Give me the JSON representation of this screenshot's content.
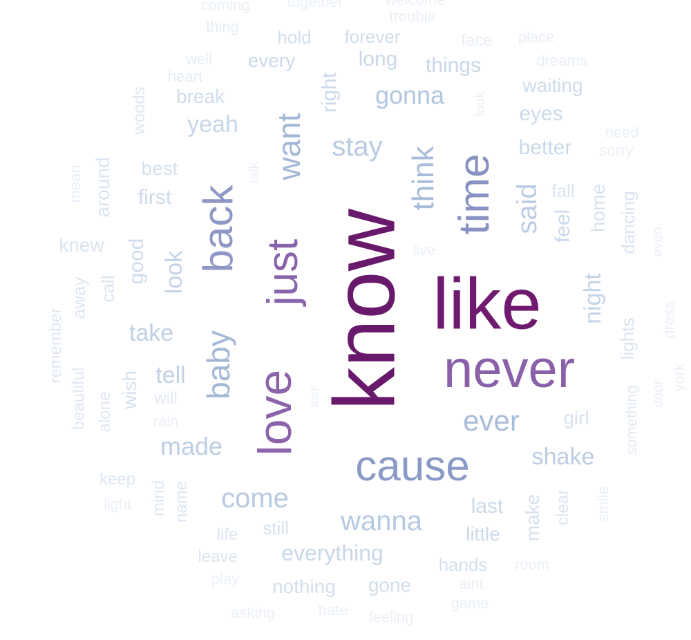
{
  "words": [
    {
      "text": "know",
      "color": "#69196b"
    },
    {
      "text": "like",
      "color": "#6f1a6e"
    },
    {
      "text": "never",
      "color": "#8960a9"
    },
    {
      "text": "love",
      "color": "#8c63aa"
    },
    {
      "text": "just",
      "color": "#8a64aa"
    },
    {
      "text": "cause",
      "color": "#8a9ac6"
    },
    {
      "text": "time",
      "color": "#8993c2"
    },
    {
      "text": "back",
      "color": "#8f97c5"
    },
    {
      "text": "baby",
      "color": "#a2b8d6"
    },
    {
      "text": "want",
      "color": "#a3b8d6"
    },
    {
      "text": "think",
      "color": "#a6bcd8"
    },
    {
      "text": "ever",
      "color": "#a7bcd8"
    },
    {
      "text": "wanna",
      "color": "#b5c9e1"
    },
    {
      "text": "come",
      "color": "#b7cae2"
    },
    {
      "text": "said",
      "color": "#bccde3"
    },
    {
      "text": "stay",
      "color": "#b9cbe2"
    },
    {
      "text": "gonna",
      "color": "#b2c6df"
    },
    {
      "text": "made",
      "color": "#bdcee4"
    },
    {
      "text": "shake",
      "color": "#bccde3"
    },
    {
      "text": "take",
      "color": "#bfd0e4"
    },
    {
      "text": "tell",
      "color": "#c1d2e5"
    },
    {
      "text": "night",
      "color": "#c4d4e7"
    },
    {
      "text": "look",
      "color": "#c3d3e6"
    },
    {
      "text": "yeah",
      "color": "#c6d6e8"
    },
    {
      "text": "everything",
      "color": "#c8d7e9"
    },
    {
      "text": "better",
      "color": "#c8d7e9"
    },
    {
      "text": "things",
      "color": "#c8d7e9"
    },
    {
      "text": "feel",
      "color": "#cbd9ea"
    },
    {
      "text": "long",
      "color": "#cad8e9"
    },
    {
      "text": "every",
      "color": "#cad8e9"
    },
    {
      "text": "right",
      "color": "#ccdaeb"
    },
    {
      "text": "eyes",
      "color": "#ccdaeb"
    },
    {
      "text": "last",
      "color": "#cbd9ea"
    },
    {
      "text": "little",
      "color": "#ccdaeb"
    },
    {
      "text": "good",
      "color": "#cfdcec"
    },
    {
      "text": "first",
      "color": "#cddaeb"
    },
    {
      "text": "break",
      "color": "#cfdcec"
    },
    {
      "text": "waiting",
      "color": "#cfdcec"
    },
    {
      "text": "forever",
      "color": "#d0ddec"
    },
    {
      "text": "hold",
      "color": "#d1deed"
    },
    {
      "text": "nothing",
      "color": "#d2deed"
    },
    {
      "text": "gone",
      "color": "#d3dfed"
    },
    {
      "text": "hands",
      "color": "#d3dfed"
    },
    {
      "text": "still",
      "color": "#d5e1ee"
    },
    {
      "text": "wish",
      "color": "#d5e1ee"
    },
    {
      "text": "girl",
      "color": "#d6e1ee"
    },
    {
      "text": "make",
      "color": "#d6e1ee"
    },
    {
      "text": "best",
      "color": "#d7e2ef"
    },
    {
      "text": "home",
      "color": "#d7e2ef"
    },
    {
      "text": "knew",
      "color": "#d9e4ef"
    },
    {
      "text": "call",
      "color": "#d9e4ef"
    },
    {
      "text": "around",
      "color": "#dae4f0"
    },
    {
      "text": "lights",
      "color": "#dae4f0"
    },
    {
      "text": "dancing",
      "color": "#dae4f0"
    },
    {
      "text": "fall",
      "color": "#dbe5f0"
    },
    {
      "text": "life",
      "color": "#dce6f1"
    },
    {
      "text": "clear",
      "color": "#dce6f1"
    },
    {
      "text": "away",
      "color": "#dde6f1"
    },
    {
      "text": "keep",
      "color": "#dde6f1"
    },
    {
      "text": "name",
      "color": "#dde6f1"
    },
    {
      "text": "leave",
      "color": "#dde6f1"
    },
    {
      "text": "woods",
      "color": "#dfe8f2"
    },
    {
      "text": "remember",
      "color": "#dfe8f2"
    },
    {
      "text": "beautiful",
      "color": "#e0e8f2"
    },
    {
      "text": "mind",
      "color": "#e0e8f2"
    },
    {
      "text": "alone",
      "color": "#e0e8f2"
    },
    {
      "text": "will",
      "color": "#e1e9f3"
    },
    {
      "text": "something",
      "color": "#e3eaf3"
    },
    {
      "text": "heart",
      "color": "#e5ecf4"
    },
    {
      "text": "well",
      "color": "#e7edf5"
    },
    {
      "text": "thing",
      "color": "#e7edf5"
    },
    {
      "text": "face",
      "color": "#e8eef5"
    },
    {
      "text": "place",
      "color": "#e8eef5"
    },
    {
      "text": "dreams",
      "color": "#e9eff6"
    },
    {
      "text": "trouble",
      "color": "#e9eff6"
    },
    {
      "text": "coming",
      "color": "#eaf0f6"
    },
    {
      "text": "together",
      "color": "#eaf0f6"
    },
    {
      "text": "welcome",
      "color": "#ebf0f7"
    },
    {
      "text": "look",
      "color": "#ebf0f7"
    },
    {
      "text": "need",
      "color": "#e9eff6"
    },
    {
      "text": "sorry",
      "color": "#ebf0f7"
    },
    {
      "text": "talk",
      "color": "#ebf0f7"
    },
    {
      "text": "mean",
      "color": "#e9eff6"
    },
    {
      "text": "live",
      "color": "#ebf0f7"
    },
    {
      "text": "even",
      "color": "#ebf0f7"
    },
    {
      "text": "dress",
      "color": "#ebf0f7"
    },
    {
      "text": "rain",
      "color": "#ebf0f7"
    },
    {
      "text": "lost",
      "color": "#ebf0f7"
    },
    {
      "text": "door",
      "color": "#ebf0f7"
    },
    {
      "text": "york",
      "color": "#ebf0f7"
    },
    {
      "text": "smile",
      "color": "#ebf0f7"
    },
    {
      "text": "light",
      "color": "#ebf0f7"
    },
    {
      "text": "room",
      "color": "#ebf0f7"
    },
    {
      "text": "play",
      "color": "#ebf0f7"
    },
    {
      "text": "aint",
      "color": "#ebf0f7"
    },
    {
      "text": "game",
      "color": "#ebf0f7"
    },
    {
      "text": "asking",
      "color": "#ebf0f7"
    },
    {
      "text": "hate",
      "color": "#ebf0f7"
    },
    {
      "text": "feeling",
      "color": "#ebf0f7"
    }
  ]
}
